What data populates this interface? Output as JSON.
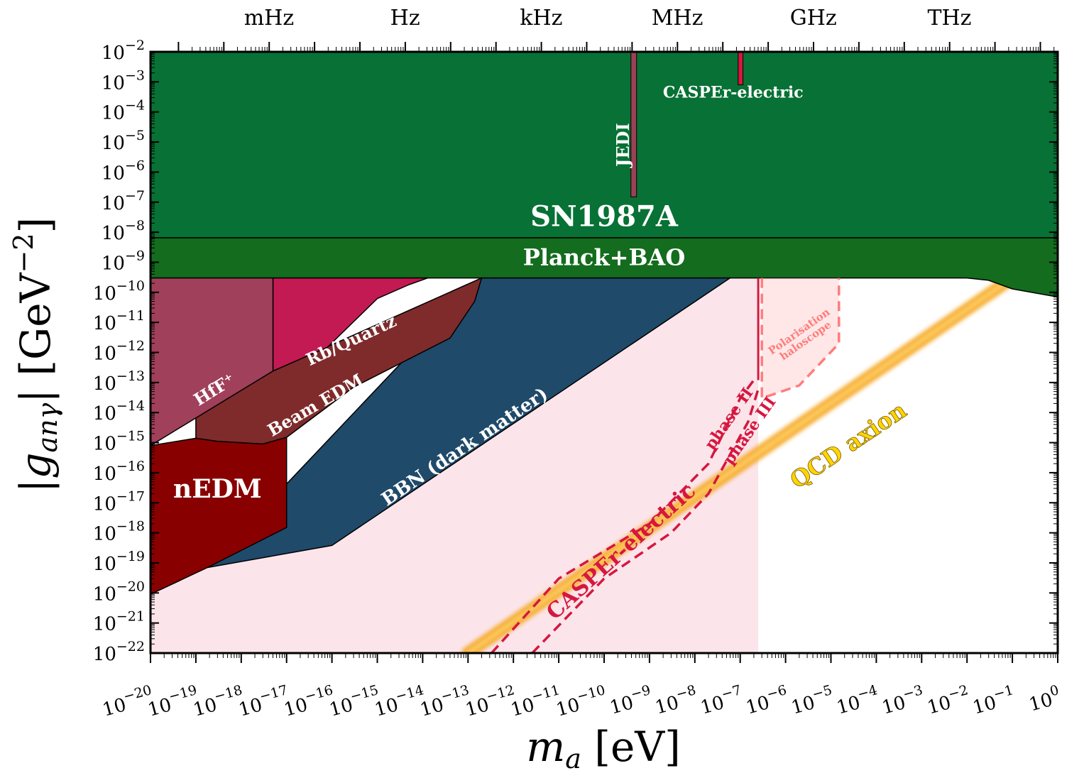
{
  "chart_data": {
    "type": "area",
    "title": "",
    "xlabel": "m_a [eV]",
    "ylabel": "|g_anγ| [GeV^-2]",
    "xscale": "log",
    "yscale": "log",
    "xlim": [
      1e-20,
      1
    ],
    "ylim": [
      1e-22,
      0.01
    ],
    "x_tick_exponents": [
      -20,
      -19,
      -18,
      -17,
      -16,
      -15,
      -14,
      -13,
      -12,
      -11,
      -10,
      -9,
      -8,
      -7,
      -6,
      -5,
      -4,
      -3,
      -2,
      -1,
      0
    ],
    "y_tick_exponents": [
      -2,
      -3,
      -4,
      -5,
      -6,
      -7,
      -8,
      -9,
      -10,
      -11,
      -12,
      -13,
      -14,
      -15,
      -16,
      -17,
      -18,
      -19,
      -20,
      -21,
      -22
    ],
    "tick_base": "10",
    "secondary_x": {
      "labels": [
        {
          "text": "mHz",
          "m_a": 4.1e-18
        },
        {
          "text": "Hz",
          "m_a": 4.1e-15
        },
        {
          "text": "kHz",
          "m_a": 4.1e-12
        },
        {
          "text": "MHz",
          "m_a": 4.1e-09
        },
        {
          "text": "GHz",
          "m_a": 4.1e-06
        },
        {
          "text": "THz",
          "m_a": 0.0041
        }
      ]
    },
    "regions": [
      {
        "name": "SN1987A",
        "color": "#087135",
        "label": "SN1987A",
        "label_at": [
          1e-10,
          1.6e-08
        ],
        "label_size": 40,
        "points": [
          [
            1e-20,
            6.5e-09
          ],
          [
            1,
            6.5e-09
          ],
          [
            1,
            0.01
          ],
          [
            1e-20,
            0.01
          ]
        ]
      },
      {
        "name": "Planck+BAO",
        "color": "#146c1e",
        "label": "Planck+BAO",
        "label_at": [
          1e-10,
          8e-10
        ],
        "label_size": 32,
        "points": [
          [
            1e-20,
            3e-10
          ],
          [
            0.01,
            3e-10
          ],
          [
            0.03,
            2.5e-10
          ],
          [
            0.1,
            1.3e-10
          ],
          [
            1,
            7e-11
          ],
          [
            1,
            6.5e-09
          ],
          [
            1e-20,
            6.5e-09
          ]
        ]
      },
      {
        "name": "BBN (dark matter)",
        "color": "#1f4a6a",
        "label": "BBN (dark matter)",
        "label_at": [
          1e-13,
          5e-16
        ],
        "label_rot": -34,
        "label_size": 26,
        "points": [
          [
            1.8e-19,
            7e-20
          ],
          [
            1e-16,
            3.8e-19
          ],
          [
            6e-08,
            3e-10
          ],
          [
            2e-13,
            3e-10
          ]
        ]
      },
      {
        "name": "Beam EDM",
        "color": "#7f2b2b",
        "label": "Beam EDM",
        "label_at": [
          5e-17,
          1.2e-14
        ],
        "label_rot": -30,
        "label_size": 24,
        "points": [
          [
            1e-19,
            2.5e-13
          ],
          [
            5e-18,
            2.4e-13
          ],
          [
            2e-13,
            3e-10
          ],
          [
            1.4e-13,
            5e-11
          ],
          [
            4e-14,
            3e-12
          ],
          [
            3e-16,
            7e-14
          ],
          [
            1e-17,
            1.5e-15
          ],
          [
            3e-18,
            9e-16
          ],
          [
            3e-19,
            1.1e-15
          ],
          [
            1e-19,
            1.4e-15
          ]
        ]
      },
      {
        "name": "Rb/Quartz",
        "color": "#c41a53",
        "label": "Rb/Quartz",
        "label_at": [
          3e-16,
          1.7e-12
        ],
        "label_rot": -25,
        "label_size": 24,
        "points": [
          [
            5e-18,
            2.4e-13
          ],
          [
            5e-18,
            3e-10
          ],
          [
            1.3e-14,
            3e-10
          ],
          [
            5e-15,
            1.8e-10
          ],
          [
            1e-15,
            6.2e-11
          ],
          [
            8e-17,
            1.5e-12
          ],
          [
            5e-18,
            2.4e-13
          ]
        ]
      },
      {
        "name": "HfF+",
        "color": "#a0405b",
        "label": "HfF⁺",
        "label_at": [
          3e-19,
          4e-14
        ],
        "label_rot": -32,
        "label_size": 24,
        "points": [
          [
            1e-20,
            8e-16
          ],
          [
            1e-20,
            3e-10
          ],
          [
            5e-18,
            3e-10
          ],
          [
            5e-18,
            2.4e-13
          ],
          [
            1e-20,
            8e-16
          ]
        ]
      },
      {
        "name": "nEDM",
        "color": "#890000",
        "label": "nEDM",
        "label_at": [
          3e-19,
          1.5e-17
        ],
        "label_rot": 0,
        "label_size": 36,
        "points": [
          [
            1e-20,
            9e-21
          ],
          [
            1e-20,
            8e-16
          ],
          [
            1e-19,
            1.4e-15
          ],
          [
            3e-19,
            1.1e-15
          ],
          [
            3e-18,
            9e-16
          ],
          [
            1e-17,
            1.5e-15
          ],
          [
            1e-17,
            4e-17
          ],
          [
            1e-17,
            1.5e-18
          ],
          [
            1.8e-19,
            7e-20
          ],
          [
            1e-20,
            9e-21
          ]
        ]
      }
    ],
    "projections": [
      {
        "name": "CASPEr-electric",
        "label": "CASPEr-electric",
        "color": "#d6173f",
        "label_at": [
          3e-10,
          1.6e-19
        ],
        "label_rot": -42,
        "label_size": 30,
        "fill": "#fbe5ea",
        "fill_points": [
          [
            1e-20,
            9e-21
          ],
          [
            1.8e-19,
            7e-20
          ],
          [
            1e-16,
            3.8e-19
          ],
          [
            6e-08,
            3e-10
          ],
          [
            2.5e-07,
            3e-10
          ],
          [
            2.5e-07,
            1e-22
          ],
          [
            1e-20,
            1e-22
          ]
        ]
      },
      {
        "name": "phase II",
        "label": "phase II",
        "color": "#d6173f",
        "dashed": true,
        "label_at": [
          7e-08,
          5e-15
        ],
        "label_rot": -55,
        "label_size": 22,
        "points": [
          [
            3.3e-13,
            1e-22
          ],
          [
            1e-11,
            3e-20
          ],
          [
            1e-09,
            2e-18
          ],
          [
            2e-08,
            2e-16
          ],
          [
            1e-07,
            3e-14
          ],
          [
            2e-07,
            1.2e-13
          ]
        ]
      },
      {
        "name": "phase III",
        "label": "phase III",
        "color": "#d6173f",
        "dashed": true,
        "label_at": [
          2e-07,
          2e-15
        ],
        "label_rot": -55,
        "label_size": 22,
        "points": [
          [
            2.6e-12,
            1e-22
          ],
          [
            1e-10,
            3e-20
          ],
          [
            3e-09,
            1e-18
          ],
          [
            2e-08,
            2e-17
          ],
          [
            1.5e-07,
            5e-15
          ],
          [
            2.5e-07,
            6e-14
          ]
        ]
      },
      {
        "name": "Polarisation haloscope",
        "label": "Polarisation haloscope",
        "color": "#ff7d7d",
        "dashed": true,
        "label_at": [
          2.2e-06,
          4e-12
        ],
        "label_rot": -35,
        "label_size": 15,
        "points": [
          [
            3e-07,
            3e-10
          ],
          [
            3e-07,
            3e-14
          ],
          [
            2e-06,
            8e-14
          ],
          [
            1.5e-05,
            2e-12
          ],
          [
            1.5e-05,
            3e-10
          ]
        ]
      },
      {
        "name": "JEDI",
        "label": "JEDI",
        "color": "#9c4154",
        "label_at": [
          3.5e-10,
          8e-06
        ],
        "label_rot": -90,
        "label_size": 24,
        "bar": [
          3.9e-10,
          5.2e-10,
          1.5e-07,
          0.01
        ]
      },
      {
        "name": "CASPEr-electric (upper)",
        "label": "CASPEr-electric",
        "color": "#d6173f",
        "label_at": [
          7e-08,
          0.0003
        ],
        "label_rot": 0,
        "label_size": 22,
        "bar": [
          9e-08,
          1.15e-07,
          0.0008,
          0.01
        ]
      }
    ],
    "qcd_axion": {
      "label": "QCD axion",
      "color": "#f5a623",
      "label_color": "#ffd500",
      "label_at": [
        3e-05,
        5e-16
      ],
      "label_rot": -34,
      "label_size": 32,
      "points": [
        [
          1e-13,
          1e-22
        ],
        [
          0.1,
          3e-10
        ]
      ]
    }
  }
}
